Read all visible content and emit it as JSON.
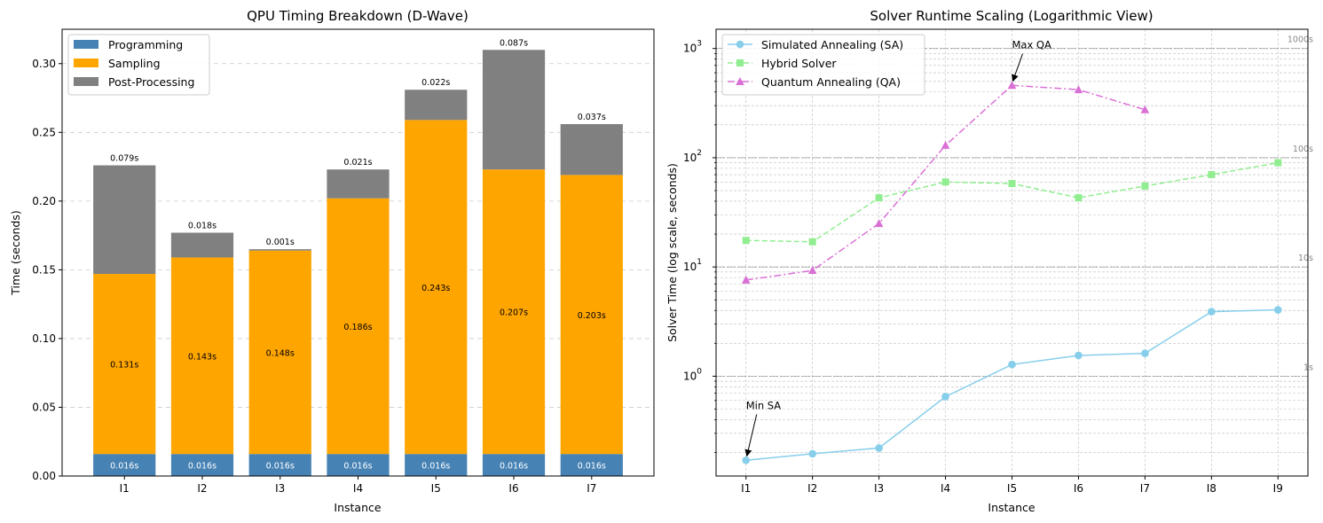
{
  "chart_data": [
    {
      "type": "bar",
      "stacked": true,
      "title": "QPU Timing Breakdown (D-Wave)",
      "xlabel": "Instance",
      "ylabel": "Time (seconds)",
      "ylim": [
        0,
        0.325
      ],
      "yticks": [
        0.0,
        0.05,
        0.1,
        0.15,
        0.2,
        0.25,
        0.3
      ],
      "ytick_labels": [
        "0.00",
        "0.05",
        "0.10",
        "0.15",
        "0.20",
        "0.25",
        "0.30"
      ],
      "grid": "y dashed",
      "legend_position": "top-left",
      "categories": [
        "I1",
        "I2",
        "I3",
        "I4",
        "I5",
        "I6",
        "I7"
      ],
      "series": [
        {
          "name": "Programming",
          "color": "#4682b4",
          "values": [
            0.016,
            0.016,
            0.016,
            0.016,
            0.016,
            0.016,
            0.016
          ],
          "labels": [
            "0.016s",
            "0.016s",
            "0.016s",
            "0.016s",
            "0.016s",
            "0.016s",
            "0.016s"
          ]
        },
        {
          "name": "Sampling",
          "color": "#ffa500",
          "values": [
            0.131,
            0.143,
            0.148,
            0.186,
            0.243,
            0.207,
            0.203
          ],
          "labels": [
            "0.131s",
            "0.143s",
            "0.148s",
            "0.186s",
            "0.243s",
            "0.207s",
            "0.203s"
          ]
        },
        {
          "name": "Post-Processing",
          "color": "#808080",
          "values": [
            0.079,
            0.018,
            0.001,
            0.021,
            0.022,
            0.087,
            0.037
          ],
          "labels": [
            "0.079s",
            "0.018s",
            "0.001s",
            "0.021s",
            "0.022s",
            "0.087s",
            "0.037s"
          ]
        }
      ]
    },
    {
      "type": "line",
      "yscale": "log",
      "title": "Solver Runtime Scaling (Logarithmic View)",
      "xlabel": "Instance",
      "ylabel": "Solver Time (log scale, seconds)",
      "ylim": [
        0.122,
        1500
      ],
      "ytick_exponents": [
        "0",
        "1",
        "2",
        "3"
      ],
      "grid": "both, major and minor",
      "legend_position": "top-left",
      "x": [
        "I1",
        "I2",
        "I3",
        "I4",
        "I5",
        "I6",
        "I7",
        "I8",
        "I9"
      ],
      "series": [
        {
          "name": "Simulated Annealing (SA)",
          "color": "#87ceeb",
          "marker": "circle",
          "linestyle": "solid",
          "values": [
            0.17,
            0.195,
            0.22,
            0.65,
            1.28,
            1.55,
            1.62,
            3.9,
            4.05
          ]
        },
        {
          "name": "Hybrid Solver",
          "color": "#90ee90",
          "marker": "square",
          "linestyle": "dashed",
          "values": [
            17.5,
            17.0,
            43.0,
            60.0,
            58.0,
            43.0,
            55.0,
            70.0,
            90.0
          ]
        },
        {
          "name": "Quantum Annealing (QA)",
          "color": "#da70d6",
          "marker": "triangle",
          "linestyle": "dashdot",
          "values": [
            7.6,
            9.3,
            25.0,
            130.0,
            460.0,
            420.0,
            275.0,
            null,
            null
          ]
        }
      ],
      "reference_lines": [
        {
          "value": 1,
          "label": "1s"
        },
        {
          "value": 10,
          "label": "10s"
        },
        {
          "value": 100,
          "label": "100s"
        },
        {
          "value": 1000,
          "label": "1000s"
        }
      ],
      "annotations": [
        {
          "text": "Min SA",
          "x": "I1",
          "y": 0.17,
          "text_y": 0.5
        },
        {
          "text": "Max QA",
          "x": "I5",
          "y": 460.0,
          "text_y": 1000
        }
      ]
    }
  ]
}
